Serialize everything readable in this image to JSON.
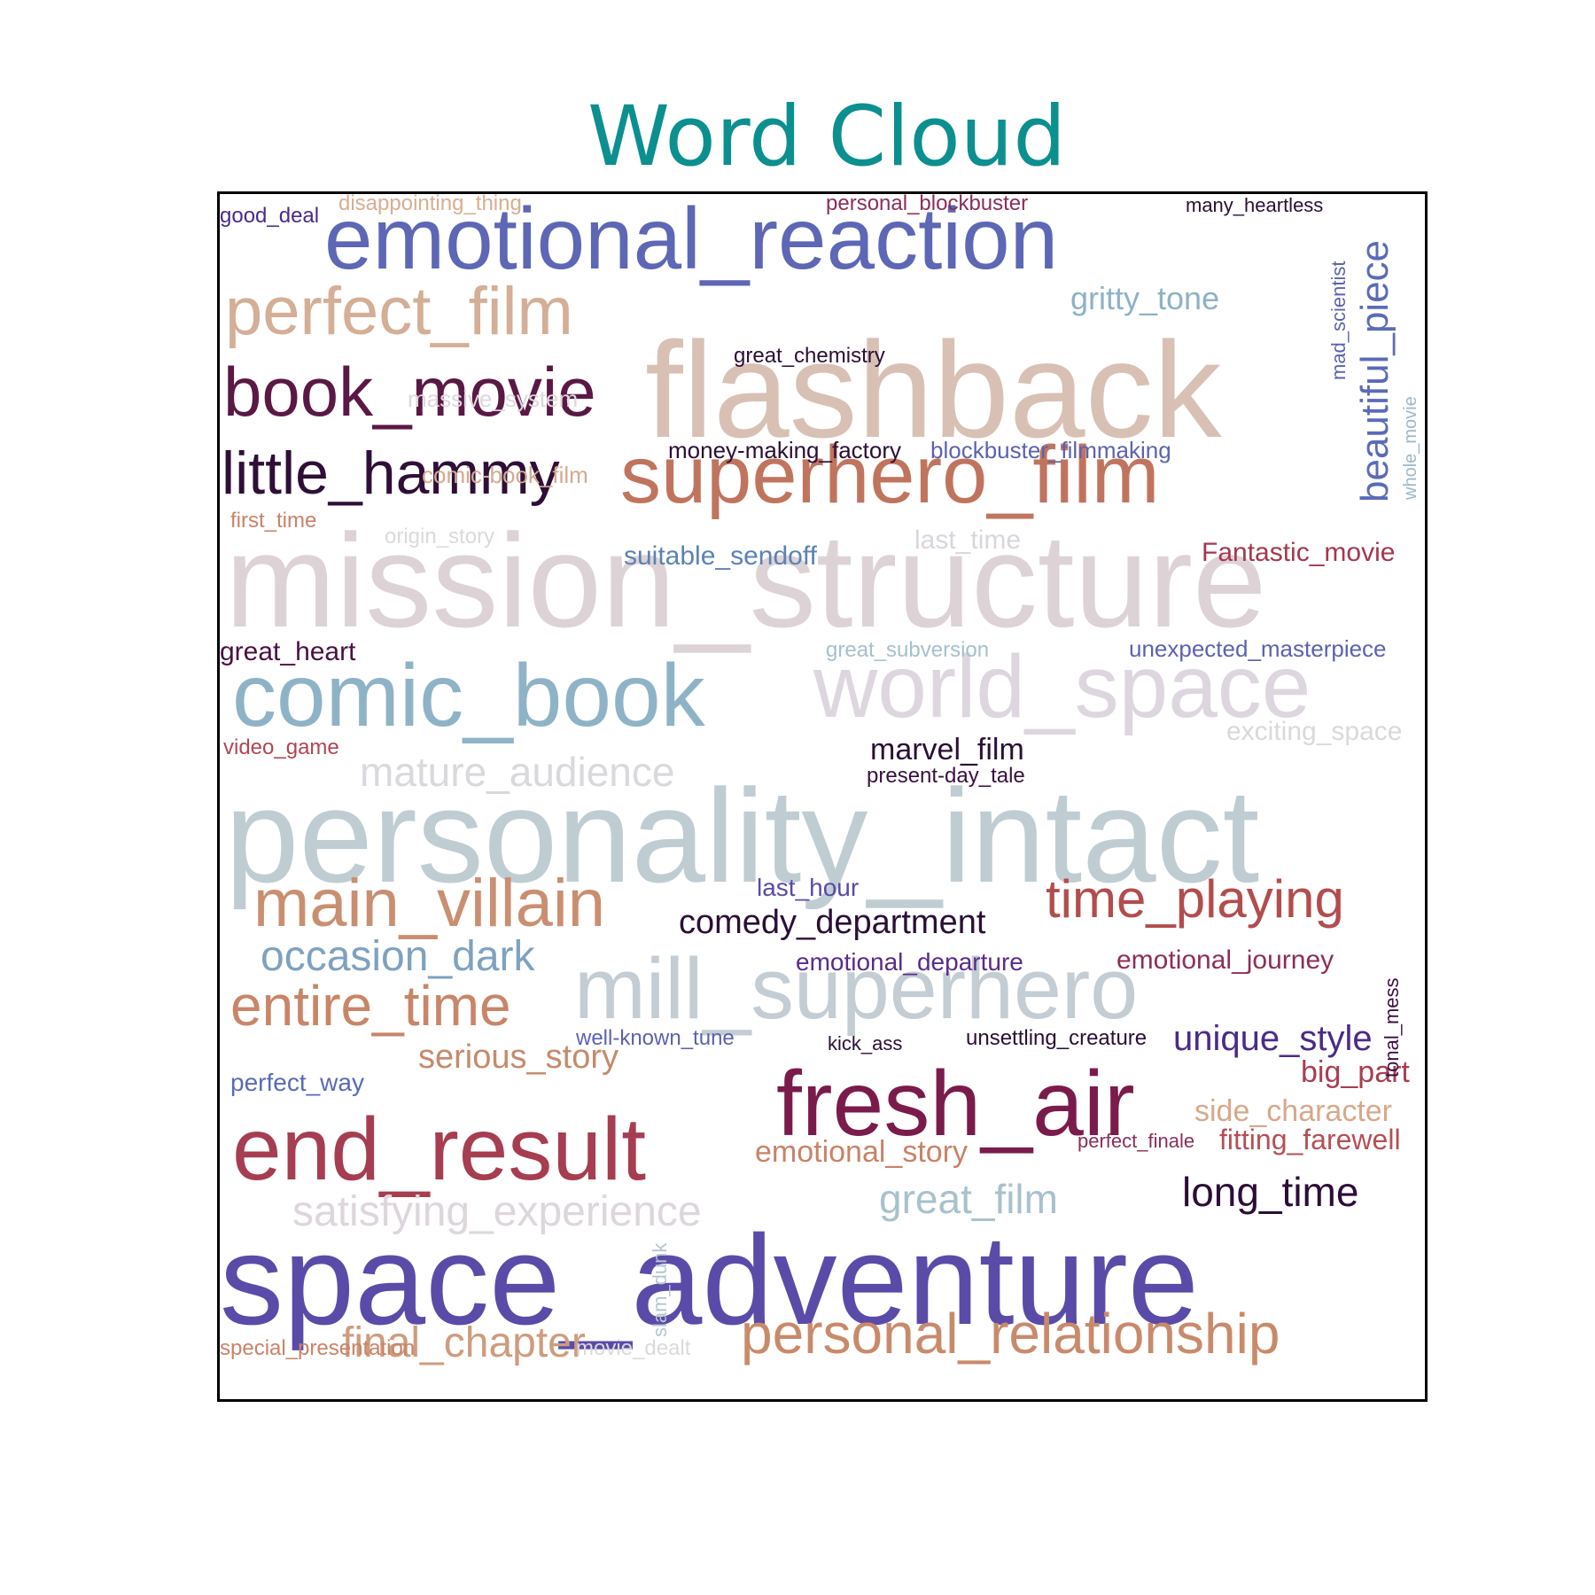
{
  "chart_data": {
    "type": "wordcloud",
    "title": "Word Cloud",
    "words": [
      {
        "text": "mission_structure",
        "color": "#ddd3d6"
      },
      {
        "text": "personality_intact",
        "color": "#bfcdd3"
      },
      {
        "text": "space_adventure",
        "color": "#5b4ba8"
      },
      {
        "text": "flashback",
        "color": "#d8c1b4"
      },
      {
        "text": "world_space",
        "color": "#ddd6df"
      },
      {
        "text": "emotional_reaction",
        "color": "#5d67b5"
      },
      {
        "text": "comic_book",
        "color": "#8fb3c6"
      },
      {
        "text": "superhero_film",
        "color": "#c0745e"
      },
      {
        "text": "mill_superhero",
        "color": "#c3cdd3"
      },
      {
        "text": "fresh_air",
        "color": "#7a1b4b"
      },
      {
        "text": "end_result",
        "color": "#a63d50"
      },
      {
        "text": "book_movie",
        "color": "#5a1844"
      },
      {
        "text": "perfect_film",
        "color": "#d4ae96"
      },
      {
        "text": "main_villain",
        "color": "#c98f70"
      },
      {
        "text": "little_hammy",
        "color": "#2f0f38"
      },
      {
        "text": "entire_time",
        "color": "#c98568"
      },
      {
        "text": "personal_relationship",
        "color": "#c98a6b"
      },
      {
        "text": "time_playing",
        "color": "#b34c4d"
      },
      {
        "text": "beautiful_piece",
        "color": "#5b6bb8"
      },
      {
        "text": "occasion_dark",
        "color": "#7ea2bf"
      },
      {
        "text": "final_chapter",
        "color": "#ce9c7e"
      },
      {
        "text": "satisfying_experience",
        "color": "#ddd6dc"
      },
      {
        "text": "mature_audience",
        "color": "#d9d8dc"
      },
      {
        "text": "long_time",
        "color": "#2c0e36"
      },
      {
        "text": "great_film",
        "color": "#a8c1cd"
      },
      {
        "text": "unique_style",
        "color": "#4a2a8a"
      },
      {
        "text": "comedy_department",
        "color": "#2a0f36"
      },
      {
        "text": "serious_story",
        "color": "#c58a6c"
      },
      {
        "text": "gritty_tone",
        "color": "#8db2c6"
      },
      {
        "text": "big_part",
        "color": "#a93e52"
      },
      {
        "text": "side_character",
        "color": "#d7a88a"
      },
      {
        "text": "fitting_farewell",
        "color": "#b54f55"
      },
      {
        "text": "marvel_film",
        "color": "#2a0f36"
      },
      {
        "text": "emotional_story",
        "color": "#c98268"
      },
      {
        "text": "Fantastic_movie",
        "color": "#a3374f"
      },
      {
        "text": "emotional_journey",
        "color": "#8e2e58"
      },
      {
        "text": "suitable_sendoff",
        "color": "#5c82b4"
      },
      {
        "text": "last_time",
        "color": "#d9d5dd"
      },
      {
        "text": "emotional_departure",
        "color": "#5a2b8a"
      },
      {
        "text": "unexpected_masterpiece",
        "color": "#5c62b0"
      },
      {
        "text": "exciting_space",
        "color": "#dbd8dc"
      },
      {
        "text": "great_heart",
        "color": "#4a1040"
      },
      {
        "text": "last_hour",
        "color": "#5a4aa6"
      },
      {
        "text": "perfect_way",
        "color": "#5a6ab8"
      },
      {
        "text": "money-making_factory",
        "color": "#2a0f36"
      },
      {
        "text": "blockbuster_filmmaking",
        "color": "#5c62b0"
      },
      {
        "text": "great_chemistry",
        "color": "#2a0f36"
      },
      {
        "text": "massive_system",
        "color": "#ddd8dd"
      },
      {
        "text": "comic-book_film",
        "color": "#d4aa8e"
      },
      {
        "text": "great_subversion",
        "color": "#a6c0cd"
      },
      {
        "text": "video_game",
        "color": "#b24552"
      },
      {
        "text": "present-day_tale",
        "color": "#3a0f40"
      },
      {
        "text": "well-known_tune",
        "color": "#5c62b0"
      },
      {
        "text": "unsettling_creature",
        "color": "#2a0f36"
      },
      {
        "text": "kick_ass",
        "color": "#2a0f36"
      },
      {
        "text": "perfect_finale",
        "color": "#8a2e58"
      },
      {
        "text": "personal_blockbuster",
        "color": "#8a2e58"
      },
      {
        "text": "many_heartless",
        "color": "#2a0f36"
      },
      {
        "text": "disappointing_thing",
        "color": "#d7ae90"
      },
      {
        "text": "good_deal",
        "color": "#4a2a8a"
      },
      {
        "text": "first_time",
        "color": "#c98268"
      },
      {
        "text": "origin_story",
        "color": "#dcd9dd"
      },
      {
        "text": "mad_scientist",
        "color": "#5c62b0"
      },
      {
        "text": "whole_movie",
        "color": "#9cb8c8"
      },
      {
        "text": "tonal_mess",
        "color": "#3a0f40"
      },
      {
        "text": "slam_dunk",
        "color": "#b6c6d0"
      },
      {
        "text": "special_presentation",
        "color": "#c98268"
      },
      {
        "text": "movie_dealt",
        "color": "#dcd9dd"
      }
    ]
  }
}
